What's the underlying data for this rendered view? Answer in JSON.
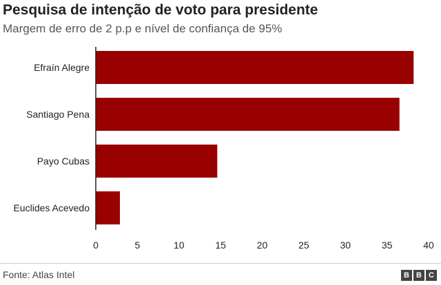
{
  "chart_data": {
    "type": "bar",
    "orientation": "horizontal",
    "title": "Pesquisa de intenção de voto para presidente",
    "subtitle": "Margem de erro de 2 p.p e nível de confiança de 95%",
    "categories": [
      "Efraín Alegre",
      "Santiago Pena",
      "Payo Cubas",
      "Euclides Acevedo"
    ],
    "values": [
      38.2,
      36.5,
      14.6,
      2.9
    ],
    "xlim": [
      0,
      40
    ],
    "xticks": [
      0,
      5,
      10,
      15,
      20,
      25,
      30,
      35,
      40
    ],
    "bar_color": "#990000",
    "grid": false
  },
  "footer": {
    "source": "Fonte: Atlas Intel",
    "logo_letters": [
      "B",
      "B",
      "C"
    ]
  }
}
